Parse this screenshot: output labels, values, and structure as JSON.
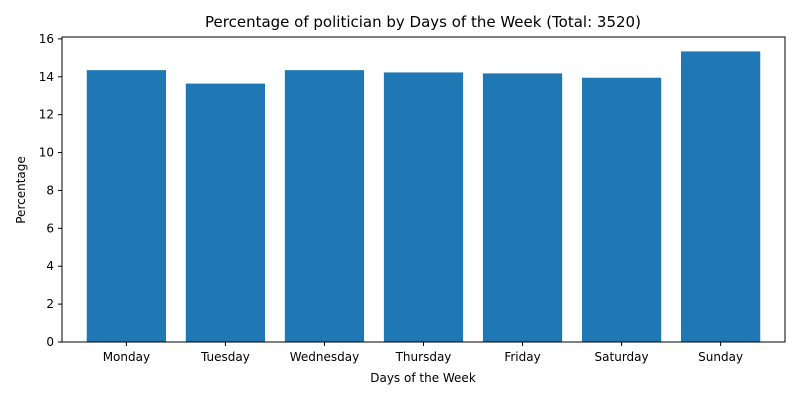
{
  "chart_data": {
    "type": "bar",
    "title": "Percentage of politician by Days of the Week (Total: 3520)",
    "xlabel": "Days of the Week",
    "ylabel": "Percentage",
    "categories": [
      "Monday",
      "Tuesday",
      "Wednesday",
      "Thursday",
      "Friday",
      "Saturday",
      "Sunday"
    ],
    "values": [
      14.35,
      13.64,
      14.35,
      14.23,
      14.18,
      13.95,
      15.34
    ],
    "ylim": [
      0,
      16.1
    ],
    "yticks": [
      0,
      2,
      4,
      6,
      8,
      10,
      12,
      14,
      16
    ],
    "bar_color": "#1f77b4",
    "grid": false,
    "legend": "none"
  }
}
